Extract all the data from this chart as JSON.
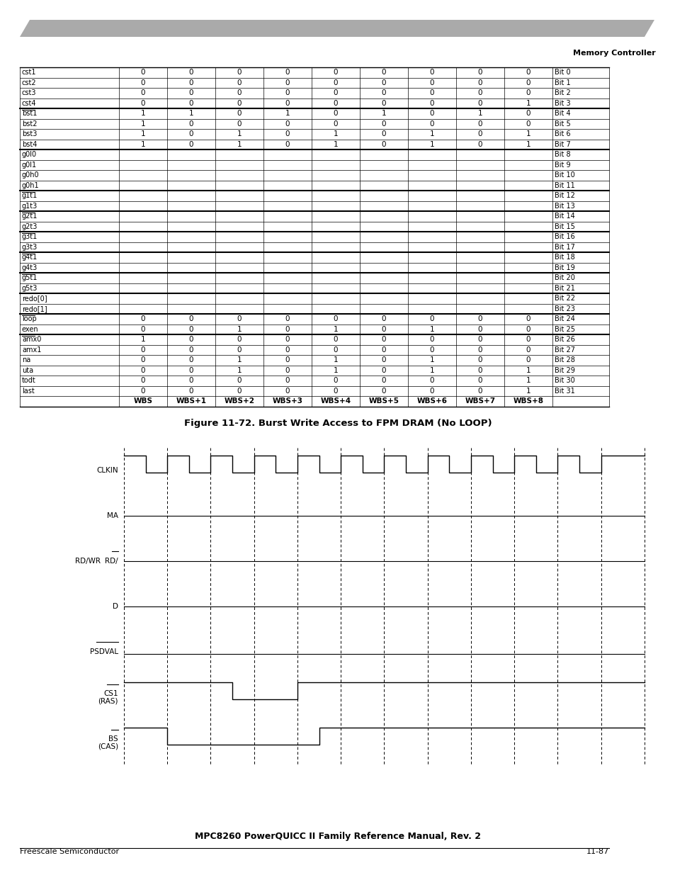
{
  "title_header": "Memory Controller",
  "page_header_color": "#aaaaaa",
  "figure_caption": "Figure 11-72. Burst Write Access to FPM DRAM (No LOOP)",
  "footer_left": "Freescale Semiconductor",
  "footer_right": "11-87",
  "footer_center": "MPC8260 PowerQUICC II Family Reference Manual, Rev. 2",
  "table": {
    "col_headers": [
      "",
      "WBS",
      "WBS+1",
      "WBS+2",
      "WBS+3",
      "WBS+4",
      "WBS+5",
      "WBS+6",
      "WBS+7",
      "WBS+8",
      ""
    ],
    "rows": [
      [
        "cst1",
        "0",
        "0",
        "0",
        "0",
        "0",
        "0",
        "0",
        "0",
        "0",
        "Bit 0"
      ],
      [
        "cst2",
        "0",
        "0",
        "0",
        "0",
        "0",
        "0",
        "0",
        "0",
        "0",
        "Bit 1"
      ],
      [
        "cst3",
        "0",
        "0",
        "0",
        "0",
        "0",
        "0",
        "0",
        "0",
        "0",
        "Bit 2"
      ],
      [
        "cst4",
        "0",
        "0",
        "0",
        "0",
        "0",
        "0",
        "0",
        "0",
        "1",
        "Bit 3"
      ],
      [
        "bst1",
        "1",
        "1",
        "0",
        "1",
        "0",
        "1",
        "0",
        "1",
        "0",
        "Bit 4"
      ],
      [
        "bst2",
        "1",
        "0",
        "0",
        "0",
        "0",
        "0",
        "0",
        "0",
        "0",
        "Bit 5"
      ],
      [
        "bst3",
        "1",
        "0",
        "1",
        "0",
        "1",
        "0",
        "1",
        "0",
        "1",
        "Bit 6"
      ],
      [
        "bst4",
        "1",
        "0",
        "1",
        "0",
        "1",
        "0",
        "1",
        "0",
        "1",
        "Bit 7"
      ],
      [
        "g0l0",
        "",
        "",
        "",
        "",
        "",
        "",
        "",
        "",
        "",
        "Bit 8"
      ],
      [
        "g0l1",
        "",
        "",
        "",
        "",
        "",
        "",
        "",
        "",
        "",
        "Bit 9"
      ],
      [
        "g0h0",
        "",
        "",
        "",
        "",
        "",
        "",
        "",
        "",
        "",
        "Bit 10"
      ],
      [
        "g0h1",
        "",
        "",
        "",
        "",
        "",
        "",
        "",
        "",
        "",
        "Bit 11"
      ],
      [
        "g1t1",
        "",
        "",
        "",
        "",
        "",
        "",
        "",
        "",
        "",
        "Bit 12"
      ],
      [
        "g1t3",
        "",
        "",
        "",
        "",
        "",
        "",
        "",
        "",
        "",
        "Bit 13"
      ],
      [
        "g2t1",
        "",
        "",
        "",
        "",
        "",
        "",
        "",
        "",
        "",
        "Bit 14"
      ],
      [
        "g2t3",
        "",
        "",
        "",
        "",
        "",
        "",
        "",
        "",
        "",
        "Bit 15"
      ],
      [
        "g3t1",
        "",
        "",
        "",
        "",
        "",
        "",
        "",
        "",
        "",
        "Bit 16"
      ],
      [
        "g3t3",
        "",
        "",
        "",
        "",
        "",
        "",
        "",
        "",
        "",
        "Bit 17"
      ],
      [
        "g4t1",
        "",
        "",
        "",
        "",
        "",
        "",
        "",
        "",
        "",
        "Bit 18"
      ],
      [
        "g4t3",
        "",
        "",
        "",
        "",
        "",
        "",
        "",
        "",
        "",
        "Bit 19"
      ],
      [
        "g5t1",
        "",
        "",
        "",
        "",
        "",
        "",
        "",
        "",
        "",
        "Bit 20"
      ],
      [
        "g5t3",
        "",
        "",
        "",
        "",
        "",
        "",
        "",
        "",
        "",
        "Bit 21"
      ],
      [
        "redo[0]",
        "",
        "",
        "",
        "",
        "",
        "",
        "",
        "",
        "",
        "Bit 22"
      ],
      [
        "redo[1]",
        "",
        "",
        "",
        "",
        "",
        "",
        "",
        "",
        "",
        "Bit 23"
      ],
      [
        "loop",
        "0",
        "0",
        "0",
        "0",
        "0",
        "0",
        "0",
        "0",
        "0",
        "Bit 24"
      ],
      [
        "exen",
        "0",
        "0",
        "1",
        "0",
        "1",
        "0",
        "1",
        "0",
        "0",
        "Bit 25"
      ],
      [
        "amx0",
        "1",
        "0",
        "0",
        "0",
        "0",
        "0",
        "0",
        "0",
        "0",
        "Bit 26"
      ],
      [
        "amx1",
        "0",
        "0",
        "0",
        "0",
        "0",
        "0",
        "0",
        "0",
        "0",
        "Bit 27"
      ],
      [
        "na",
        "0",
        "0",
        "1",
        "0",
        "1",
        "0",
        "1",
        "0",
        "0",
        "Bit 28"
      ],
      [
        "uta",
        "0",
        "0",
        "1",
        "0",
        "1",
        "0",
        "1",
        "0",
        "1",
        "Bit 29"
      ],
      [
        "todt",
        "0",
        "0",
        "0",
        "0",
        "0",
        "0",
        "0",
        "0",
        "1",
        "Bit 30"
      ],
      [
        "last",
        "0",
        "0",
        "0",
        "0",
        "0",
        "0",
        "0",
        "0",
        "1",
        "Bit 31"
      ]
    ],
    "thick_border_after_rows": [
      3,
      7,
      11,
      13,
      15,
      17,
      19,
      21,
      23,
      25
    ],
    "overline_row_indices": [
      4,
      12,
      14,
      16,
      18,
      20,
      24,
      26
    ],
    "overline_label_chars": [
      4,
      4,
      4,
      4,
      4,
      4,
      4,
      4
    ]
  },
  "timing": {
    "signals": [
      "CLKIN",
      "MA",
      "RD/WR",
      "D",
      "PSDVAL",
      "CS1/(RAS)",
      "BS/(CAS)"
    ],
    "overline_parts": {
      "2": "WR",
      "4": "PSDVAL",
      "5": "CS1",
      "6": "BS"
    },
    "n_clk_half_periods": 22,
    "n_time_cols": 12,
    "cs1_low_col": 2.5,
    "cs1_high_col": 4.0,
    "bs_low_col": 1.0,
    "bs_high_col": 4.5
  }
}
